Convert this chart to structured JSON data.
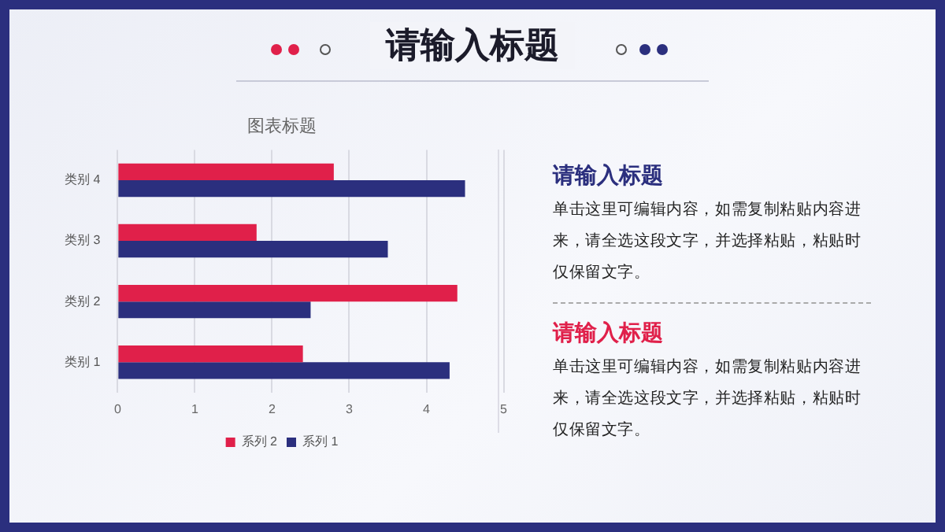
{
  "chart_data": [
    {
      "type": "bar",
      "orientation": "horizontal",
      "title": "图表标题",
      "categories": [
        "类别 4",
        "类别 3",
        "类别 2",
        "类别 1"
      ],
      "series": [
        {
          "name": "系列 2",
          "color": "#e0204a",
          "values": [
            2.8,
            1.8,
            4.4,
            2.4
          ]
        },
        {
          "name": "系列 1",
          "color": "#2b2f7e",
          "values": [
            4.5,
            3.5,
            2.5,
            4.3
          ]
        }
      ],
      "xlim": [
        0,
        5
      ],
      "xticks": [
        0,
        1,
        2,
        3,
        4,
        5
      ],
      "grid": "x",
      "legend": "bottom"
    },
    {
      "type": "other",
      "title": "请输入标题",
      "annotations": [
        "请输入标题",
        "单击这里可编辑内容，如需复制粘贴内容进来，请全选这段文字，并选择粘贴，粘贴时仅保留文字。",
        "请输入标题",
        "单击这里可编辑内容，如需复制粘贴内容进来，请全选这段文字，并选择粘贴，粘贴时仅保留文字。"
      ]
    }
  ]
}
